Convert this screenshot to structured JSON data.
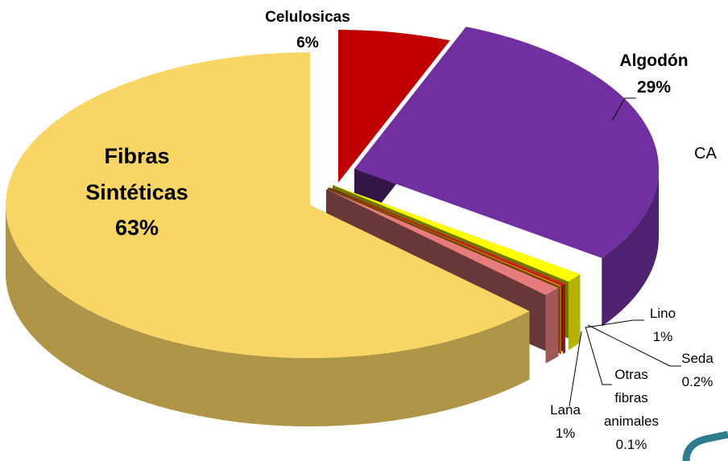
{
  "chart_data": {
    "type": "pie3d",
    "categories": [
      "Celulosicas",
      "Algodón",
      "Lino",
      "Seda",
      "Otras fibras animales",
      "Lana",
      "Fibras Sintéticas"
    ],
    "values": [
      6,
      29,
      1,
      0.2,
      0.1,
      1,
      63
    ],
    "value_labels": [
      "6%",
      "29%",
      "1%",
      "0.2%",
      "0.1%",
      "1%",
      "63%"
    ],
    "colors": [
      "#c00000",
      "#7030a0",
      "#ffff00",
      "#e02020",
      "#ff9900",
      "#e67c7c",
      "#f8d565"
    ],
    "annotations": [
      {
        "text": "CA"
      }
    ]
  }
}
